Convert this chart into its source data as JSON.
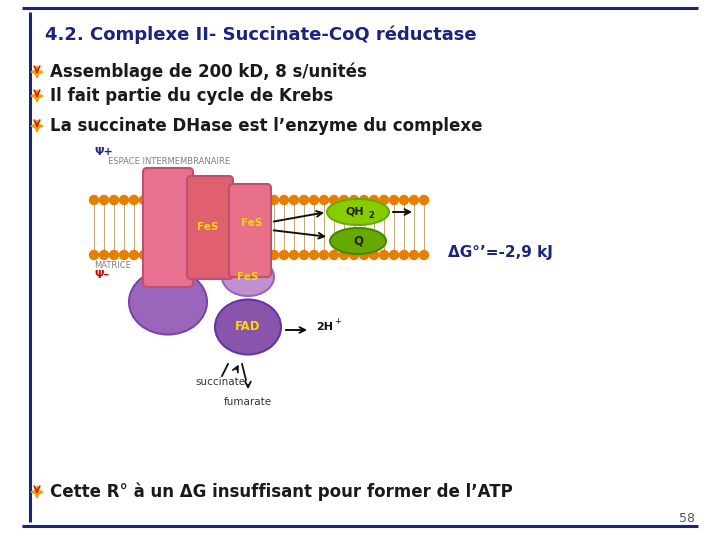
{
  "bg_color": "#ffffff",
  "border_color": "#1a237e",
  "title": "4.2. Complexe II- Succinate-CoQ réductase",
  "title_color": "#1a237e",
  "title_fontsize": 13,
  "bullet_text_color": "#1a1a1a",
  "bullets": [
    "Assemblage de 200 kD, 8 s/unités",
    "Il fait partie du cycle de Krebs",
    "La succinate DHase est l’enzyme du complexe"
  ],
  "bullet_fontsizes": [
    12,
    12,
    12
  ],
  "last_bullet": "Cette R° à un ΔG insuffisant pour former de l’ATP",
  "last_bullet_fontsize": 12,
  "delta_g_text": "ΔG°’=-2,9 kJ",
  "delta_g_color": "#1a237e",
  "page_number": "58",
  "psi_plus_color": "#1a237e",
  "psi_minus_color": "#cc0000",
  "matrice_color": "#808080",
  "espace_color": "#808080",
  "bead_color": "#e67e00",
  "tail_color": "#c8a870",
  "pink_color": "#e87090",
  "pink_edge": "#c05070",
  "purple_light": "#b07cc0",
  "purple_mid": "#9955bb",
  "purple_dark": "#8844aa",
  "green_bright": "#88cc00",
  "green_dark": "#66aa00",
  "fes_color": "#ffd700",
  "arrow_color": "#111111"
}
